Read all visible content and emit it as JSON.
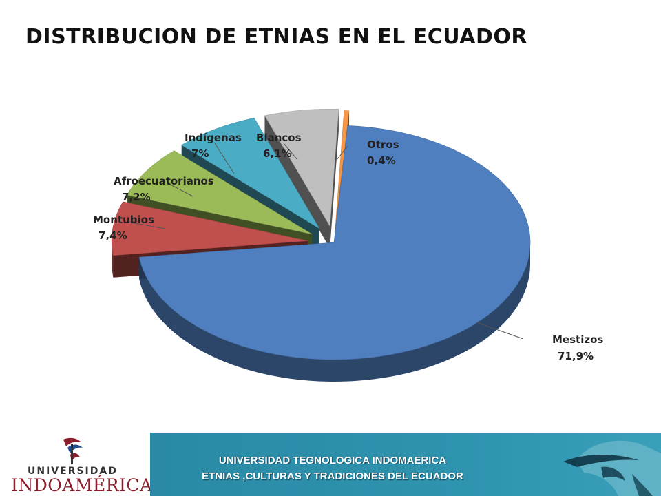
{
  "slide": {
    "title": "DISTRIBUCION DE ETNIAS EN EL ECUADOR"
  },
  "chart_data": {
    "type": "pie",
    "style": "3d-exploded",
    "categories": [
      "Mestizos",
      "Montubios",
      "Afroecuatorianos",
      "Indígenas",
      "Blancos",
      "Otros"
    ],
    "values": [
      71.9,
      7.4,
      7.2,
      7.0,
      6.1,
      0.4
    ],
    "value_labels": [
      "71,9%",
      "7,4%",
      "7,2%",
      "7%",
      "6,1%",
      "0,4%"
    ],
    "colors": [
      "#4f7fbf",
      "#c0504d",
      "#9bbb59",
      "#4bacc6",
      "#bfbfbf",
      "#f79646"
    ],
    "legend": "none",
    "title": ""
  },
  "footer": {
    "logo_top": "UNIVERSIDAD",
    "logo_bottom": "INDOAMÉRICA",
    "line1": "UNIVERSIDAD TEGNOLOGICA INDOMAERICA",
    "line2": "ETNIAS ,CULTURAS  Y TRADICIONES DEL ECUADOR"
  }
}
